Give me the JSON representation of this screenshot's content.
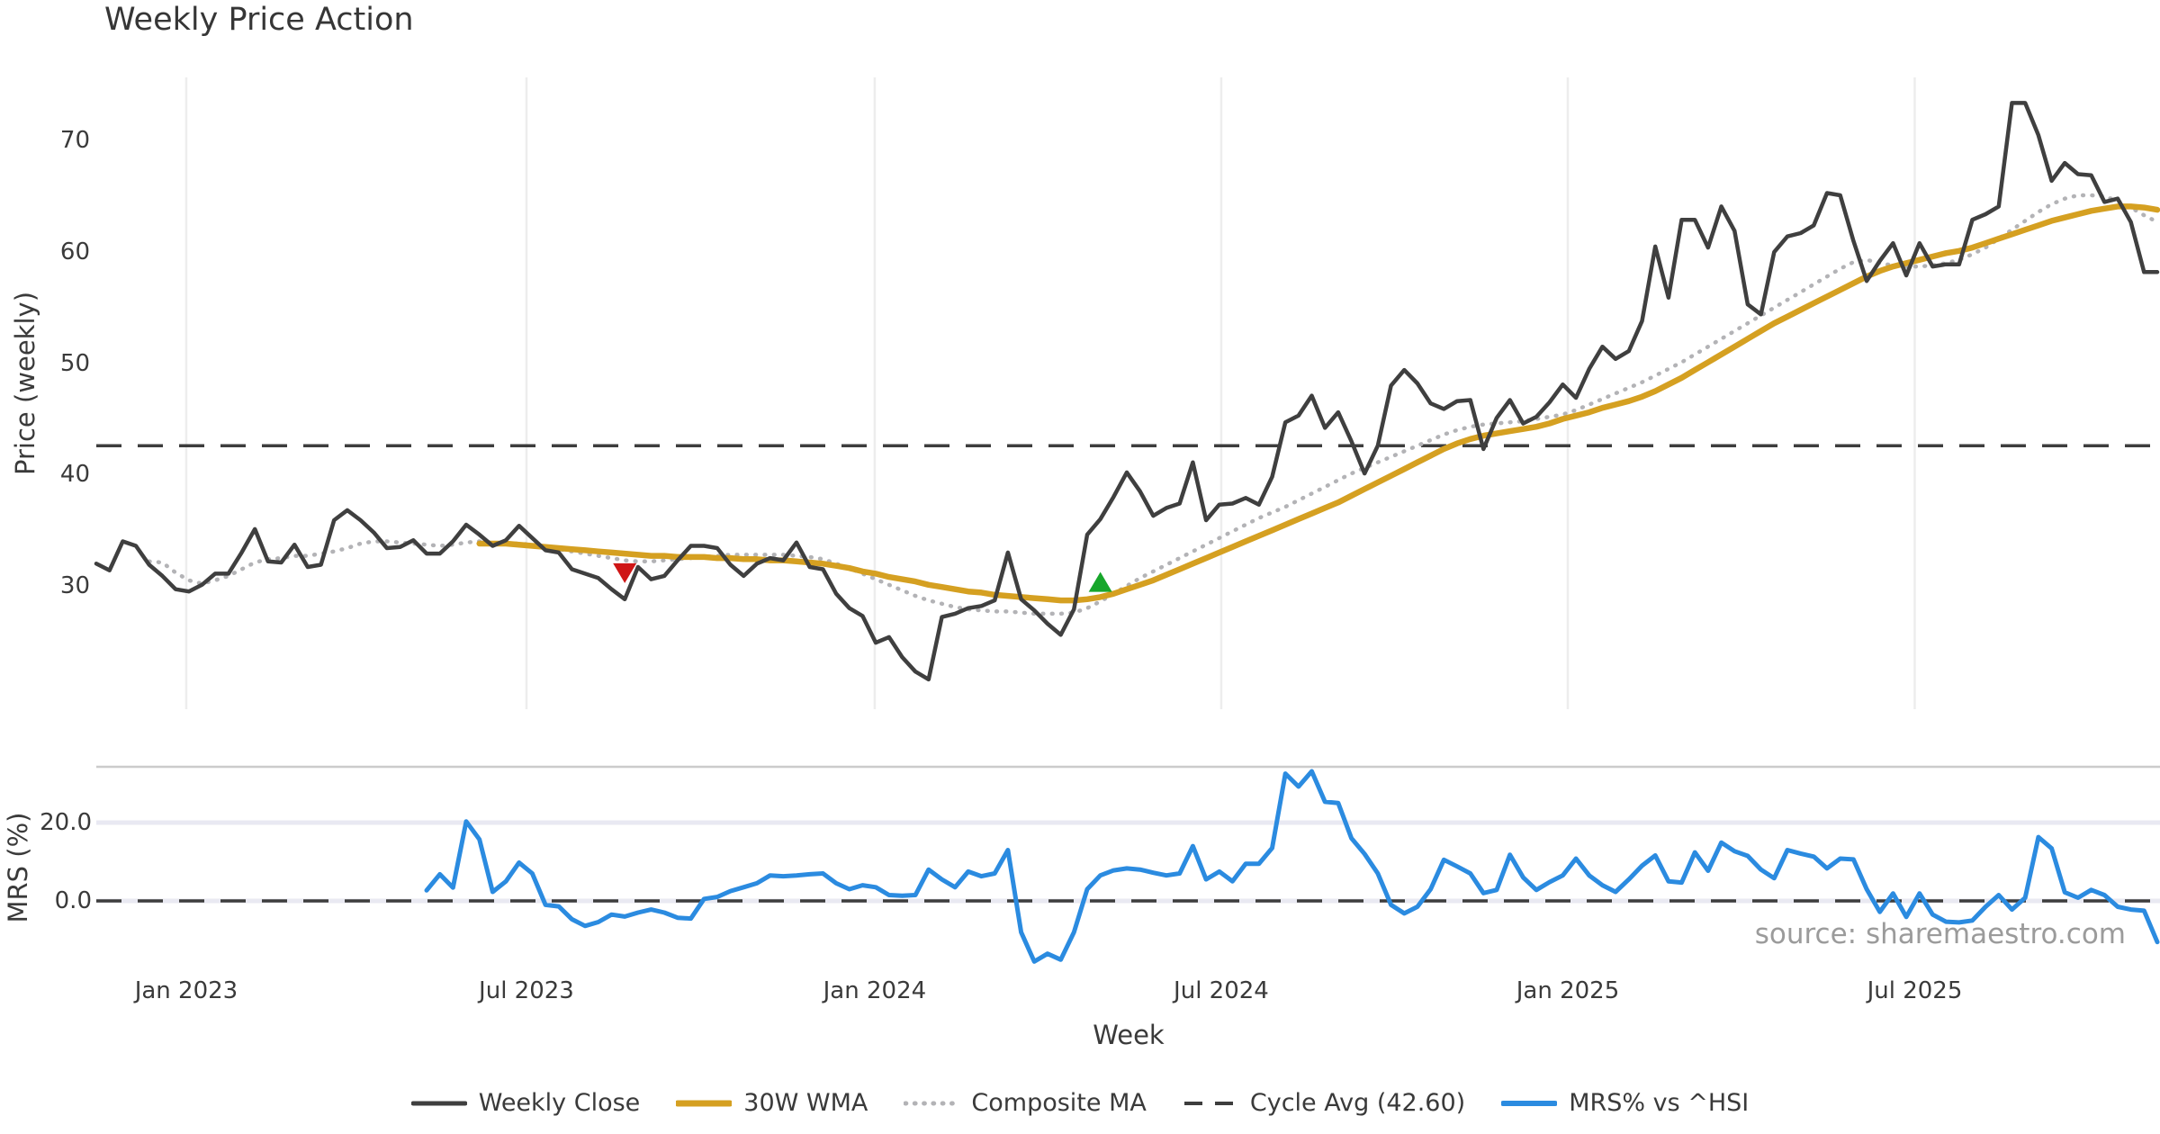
{
  "title": "Weekly Price Action",
  "watermark": "source: sharemaestro.com",
  "xlabel": "Week",
  "price_panel": {
    "ylabel": "Price (weekly)",
    "yticks": [
      30,
      40,
      50,
      60,
      70
    ]
  },
  "mrs_panel": {
    "ylabel": "MRS (%)",
    "yticks": [
      {
        "label": "20.0",
        "value": 20
      },
      {
        "label": "0.0",
        "value": 0
      }
    ]
  },
  "xticks": [
    {
      "label": "Jan 2023",
      "week": 6.81
    },
    {
      "label": "Jul 2023",
      "week": 32.56
    },
    {
      "label": "Jan 2024",
      "week": 58.92
    },
    {
      "label": "Jul 2024",
      "week": 85.15
    },
    {
      "label": "Jan 2025",
      "week": 111.38
    },
    {
      "label": "Jul 2025",
      "week": 137.64
    }
  ],
  "legend": [
    {
      "label": "Weekly Close",
      "style": "solid",
      "color": "#3f3f3f",
      "width": 5
    },
    {
      "label": "30W WMA",
      "style": "solid",
      "color": "#d5a021",
      "width": 7
    },
    {
      "label": "Composite MA",
      "style": "dotted",
      "color": "#b3b3b6",
      "width": 5
    },
    {
      "label": "Cycle Avg (42.60)",
      "style": "dashed",
      "color": "#3d3d3d",
      "width": 4
    },
    {
      "label": "MRS% vs ^HSI",
      "style": "solid",
      "color": "#2b8be0",
      "width": 6
    }
  ],
  "colors": {
    "text": "#3a3a3a",
    "grid_vertical": "#ededed",
    "panel_border": "#cbcbcb",
    "light_gridline": "#e9e9f2",
    "dashed_line": "#3d3d3d",
    "watermark": "#9b9b9b"
  },
  "chart_data": {
    "type": "line",
    "title": "Weekly Price Action",
    "xlabel": "Week",
    "weeks_total": 157,
    "cycle_avg": 42.6,
    "price_ylim": [
      19,
      75.5
    ],
    "mrs_ylim": [
      -18,
      34.2
    ],
    "grid": "vertical-price-panel-only",
    "legend_position": "bottom-center",
    "series": [
      {
        "name": "Weekly Close",
        "panel": "price",
        "color": "#3f3f3f",
        "style": "solid",
        "stroke_width": 4.5,
        "start_week": 0,
        "values": [
          32.0,
          31.4,
          34.0,
          33.6,
          31.9,
          30.9,
          29.7,
          29.5,
          30.1,
          31.1,
          31.1,
          33.0,
          35.1,
          32.2,
          32.1,
          33.7,
          31.7,
          31.9,
          35.9,
          36.8,
          35.9,
          34.8,
          33.4,
          33.5,
          34.1,
          32.9,
          32.9,
          34.0,
          35.5,
          34.6,
          33.6,
          34.1,
          35.4,
          34.3,
          33.2,
          33.0,
          31.5,
          31.1,
          30.7,
          29.7,
          28.8,
          31.7,
          30.6,
          30.9,
          32.3,
          33.6,
          33.6,
          33.4,
          31.9,
          30.9,
          32.0,
          32.5,
          32.3,
          33.9,
          31.7,
          31.5,
          29.3,
          28.0,
          27.3,
          24.9,
          25.4,
          23.6,
          22.3,
          21.6,
          27.2,
          27.5,
          28.0,
          28.2,
          28.7,
          33.0,
          28.8,
          27.8,
          26.6,
          25.6,
          27.9,
          34.6,
          36.0,
          38.0,
          40.2,
          38.5,
          36.3,
          37.0,
          37.4,
          41.1,
          35.9,
          37.3,
          37.4,
          37.9,
          37.3,
          39.8,
          44.7,
          45.3,
          47.1,
          44.2,
          45.6,
          43.0,
          40.1,
          42.6,
          48.0,
          49.4,
          48.2,
          46.4,
          45.9,
          46.6,
          46.7,
          42.3,
          45.1,
          46.7,
          44.6,
          45.2,
          46.5,
          48.1,
          46.9,
          49.5,
          51.5,
          50.4,
          51.1,
          53.8,
          60.5,
          55.9,
          62.9,
          62.9,
          60.4,
          64.1,
          61.9,
          55.3,
          54.4,
          60.0,
          61.4,
          61.7,
          62.4,
          65.3,
          65.1,
          61.0,
          57.4,
          59.2,
          60.8,
          57.9,
          60.8,
          58.7,
          58.9,
          58.9,
          62.9,
          63.4,
          64.1,
          73.4,
          73.4,
          70.5,
          66.4,
          68.0,
          67.0,
          66.9,
          64.5,
          64.8,
          62.7,
          58.2,
          58.2
        ]
      },
      {
        "name": "30W WMA",
        "panel": "price",
        "color": "#d5a021",
        "style": "solid",
        "stroke_width": 6.5,
        "start_week": 29,
        "values": [
          33.8,
          33.8,
          33.8,
          33.7,
          33.6,
          33.5,
          33.4,
          33.3,
          33.2,
          33.1,
          33.0,
          32.9,
          32.8,
          32.7,
          32.7,
          32.6,
          32.6,
          32.6,
          32.5,
          32.5,
          32.4,
          32.4,
          32.3,
          32.3,
          32.2,
          32.1,
          32.0,
          31.8,
          31.6,
          31.3,
          31.1,
          30.8,
          30.6,
          30.4,
          30.1,
          29.9,
          29.7,
          29.5,
          29.4,
          29.2,
          29.1,
          29.0,
          28.9,
          28.8,
          28.7,
          28.7,
          28.8,
          29.0,
          29.3,
          29.7,
          30.1,
          30.5,
          31.0,
          31.5,
          32.0,
          32.5,
          33.0,
          33.5,
          34.0,
          34.5,
          35.0,
          35.5,
          36.0,
          36.5,
          37.0,
          37.5,
          38.1,
          38.7,
          39.3,
          39.9,
          40.5,
          41.1,
          41.7,
          42.3,
          42.8,
          43.2,
          43.5,
          43.7,
          43.9,
          44.1,
          44.3,
          44.6,
          45.0,
          45.3,
          45.6,
          46.0,
          46.3,
          46.6,
          47.0,
          47.5,
          48.1,
          48.7,
          49.4,
          50.1,
          50.8,
          51.5,
          52.2,
          52.9,
          53.6,
          54.2,
          54.8,
          55.4,
          56.0,
          56.6,
          57.2,
          57.8,
          58.3,
          58.7,
          59.0,
          59.3,
          59.6,
          59.9,
          60.1,
          60.4,
          60.8,
          61.2,
          61.6,
          62.0,
          62.4,
          62.8,
          63.1,
          63.4,
          63.7,
          63.9,
          64.1,
          64.1,
          64.0,
          63.8
        ]
      },
      {
        "name": "Composite MA",
        "panel": "price",
        "color": "#b3b3b6",
        "style": "dotted",
        "stroke_width": 4.5,
        "start_week": 4,
        "values": [
          32.2,
          32.1,
          31.2,
          30.5,
          30.2,
          30.5,
          30.9,
          31.5,
          32.1,
          32.4,
          32.5,
          32.7,
          32.7,
          32.9,
          33.1,
          33.4,
          33.8,
          34.0,
          34.0,
          33.9,
          33.8,
          33.7,
          33.6,
          33.7,
          33.9,
          34.0,
          33.9,
          33.8,
          33.8,
          33.7,
          33.5,
          33.3,
          33.1,
          32.9,
          32.7,
          32.5,
          32.3,
          32.2,
          32.2,
          32.3,
          32.4,
          32.5,
          32.6,
          32.7,
          32.8,
          32.8,
          32.8,
          32.8,
          32.8,
          32.7,
          32.6,
          32.4,
          32.0,
          31.6,
          31.1,
          30.6,
          30.1,
          29.6,
          29.1,
          28.7,
          28.4,
          28.1,
          27.9,
          27.8,
          27.7,
          27.7,
          27.6,
          27.5,
          27.5,
          27.5,
          27.6,
          28.0,
          28.6,
          29.3,
          30.0,
          30.7,
          31.3,
          31.9,
          32.5,
          33.1,
          33.7,
          34.3,
          34.9,
          35.5,
          36.1,
          36.6,
          37.1,
          37.7,
          38.3,
          38.9,
          39.5,
          40.1,
          40.6,
          41.1,
          41.6,
          42.1,
          42.6,
          43.1,
          43.6,
          44.0,
          44.3,
          44.5,
          44.6,
          44.7,
          44.8,
          45.0,
          45.2,
          45.4,
          45.8,
          46.3,
          46.8,
          47.3,
          47.8,
          48.3,
          48.9,
          49.5,
          50.1,
          50.8,
          51.5,
          52.2,
          52.9,
          53.6,
          54.3,
          55.0,
          55.7,
          56.4,
          57.1,
          57.8,
          58.5,
          59.1,
          59.3,
          59.0,
          58.8,
          58.7,
          58.7,
          58.8,
          59.0,
          59.3,
          59.8,
          60.4,
          61.2,
          62.0,
          62.8,
          63.6,
          64.3,
          64.8,
          65.1,
          65.1,
          65.0,
          64.6,
          64.0,
          63.3,
          62.7
        ]
      },
      {
        "name": "MRS% vs ^HSI",
        "panel": "mrs",
        "color": "#2b8be0",
        "style": "solid",
        "stroke_width": 5,
        "start_week": 25,
        "values": [
          2.7,
          6.8,
          3.4,
          20.3,
          15.7,
          2.3,
          5.0,
          9.8,
          7.0,
          -1.0,
          -1.4,
          -4.7,
          -6.4,
          -5.4,
          -3.5,
          -4.0,
          -3.0,
          -2.2,
          -3.0,
          -4.3,
          -4.5,
          0.5,
          1.0,
          2.5,
          3.5,
          4.5,
          6.5,
          6.3,
          6.5,
          6.8,
          7.0,
          4.5,
          3.0,
          4.0,
          3.5,
          1.5,
          1.3,
          1.5,
          8.0,
          5.5,
          3.5,
          7.5,
          6.3,
          7.0,
          13.0,
          -8.0,
          -15.5,
          -13.5,
          -15.0,
          -8.0,
          3.0,
          6.5,
          7.8,
          8.3,
          8.0,
          7.2,
          6.5,
          7.0,
          14.0,
          5.5,
          7.5,
          5.0,
          9.5,
          9.5,
          13.5,
          32.5,
          29.2,
          33.1,
          25.3,
          25.0,
          16.0,
          12.0,
          7.0,
          -1.0,
          -3.2,
          -1.5,
          3.0,
          10.5,
          8.8,
          7.0,
          2.0,
          2.8,
          11.8,
          6.0,
          2.8,
          4.8,
          6.5,
          10.8,
          6.5,
          4.0,
          2.3,
          5.5,
          9.0,
          11.6,
          5.0,
          4.7,
          12.4,
          7.7,
          14.9,
          12.7,
          11.5,
          8.0,
          5.8,
          13.0,
          12.1,
          11.3,
          8.3,
          10.8,
          10.6,
          3.0,
          -2.8,
          1.9,
          -4.1,
          1.9,
          -3.5,
          -5.3,
          -5.5,
          -5.0,
          -1.5,
          1.5,
          -2.2,
          0.8,
          16.3,
          13.4,
          2.2,
          0.8,
          2.8,
          1.5,
          -1.5,
          -2.2,
          -2.5,
          -10.5
        ]
      }
    ],
    "markers": [
      {
        "type": "sell",
        "shape": "triangle-down",
        "week": 40,
        "price": 31.3,
        "color": "#cf1616"
      },
      {
        "type": "buy",
        "shape": "triangle-up",
        "week": 76,
        "price": 30.2,
        "color": "#17a62b"
      }
    ]
  }
}
